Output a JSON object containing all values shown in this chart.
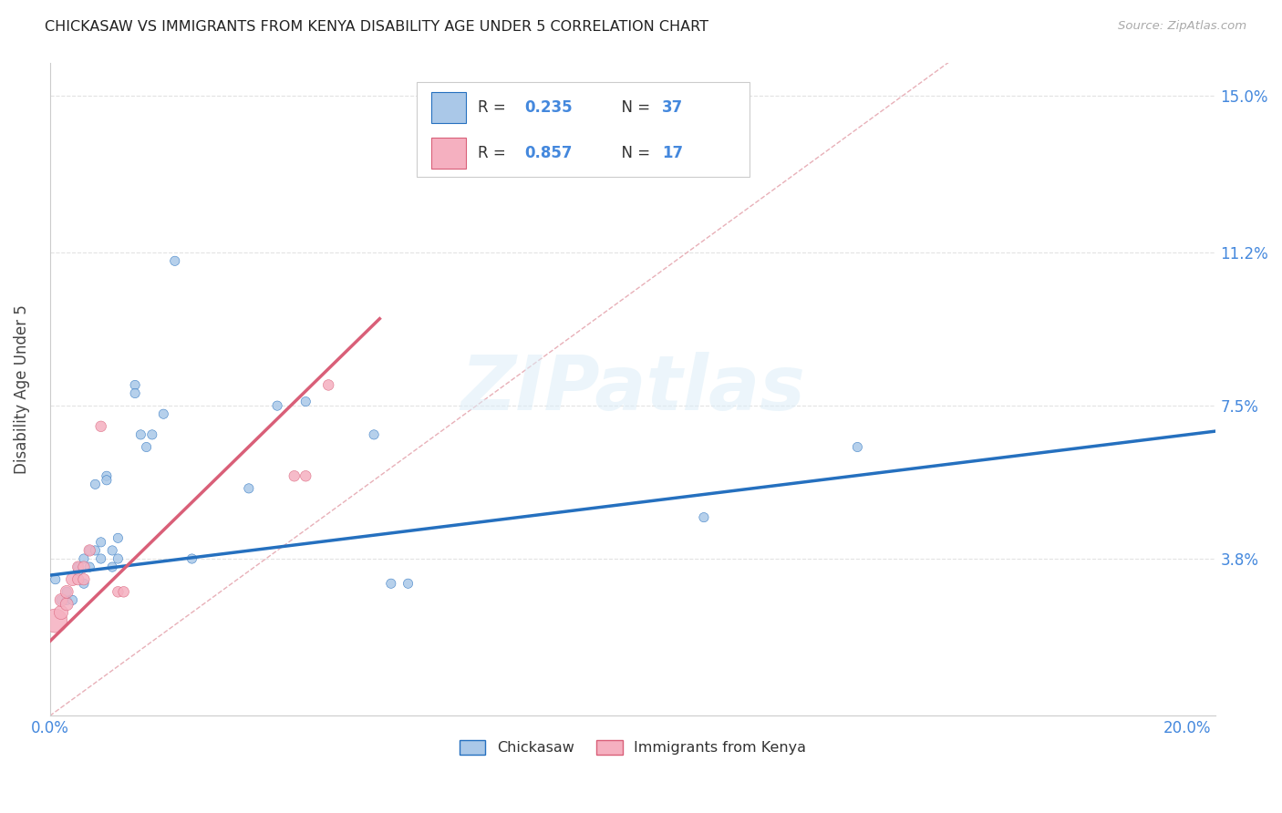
{
  "title": "CHICKASAW VS IMMIGRANTS FROM KENYA DISABILITY AGE UNDER 5 CORRELATION CHART",
  "source_text": "Source: ZipAtlas.com",
  "ylabel": "Disability Age Under 5",
  "xlim": [
    0.0,
    0.205
  ],
  "ylim": [
    0.0,
    0.158
  ],
  "xticks": [
    0.0,
    0.05,
    0.1,
    0.15,
    0.2
  ],
  "xtick_labels": [
    "0.0%",
    "",
    "",
    "",
    "20.0%"
  ],
  "ytick_positions": [
    0.038,
    0.075,
    0.112,
    0.15
  ],
  "ytick_labels": [
    "3.8%",
    "7.5%",
    "11.2%",
    "15.0%"
  ],
  "watermark": "ZIPatlas",
  "chickasaw_color": "#aac8e8",
  "kenya_color": "#f5b0c0",
  "line1_color": "#2570bf",
  "line2_color": "#d95f78",
  "diagonal_color": "#e8b0b8",
  "background_color": "#ffffff",
  "grid_color": "#e2e2e2",
  "title_color": "#222222",
  "axis_label_color": "#444444",
  "tick_color": "#4488dd",
  "r_value_color": "#4488dd",
  "n_value_color": "#4488dd",
  "legend_border_color": "#cccccc",
  "chickasaw_points": [
    [
      0.001,
      0.033
    ],
    [
      0.002,
      0.028
    ],
    [
      0.003,
      0.028
    ],
    [
      0.003,
      0.03
    ],
    [
      0.004,
      0.028
    ],
    [
      0.005,
      0.035
    ],
    [
      0.005,
      0.036
    ],
    [
      0.006,
      0.032
    ],
    [
      0.006,
      0.038
    ],
    [
      0.007,
      0.036
    ],
    [
      0.007,
      0.04
    ],
    [
      0.008,
      0.056
    ],
    [
      0.008,
      0.04
    ],
    [
      0.009,
      0.042
    ],
    [
      0.009,
      0.038
    ],
    [
      0.01,
      0.058
    ],
    [
      0.01,
      0.057
    ],
    [
      0.011,
      0.04
    ],
    [
      0.011,
      0.036
    ],
    [
      0.012,
      0.043
    ],
    [
      0.012,
      0.038
    ],
    [
      0.015,
      0.08
    ],
    [
      0.015,
      0.078
    ],
    [
      0.016,
      0.068
    ],
    [
      0.017,
      0.065
    ],
    [
      0.018,
      0.068
    ],
    [
      0.02,
      0.073
    ],
    [
      0.022,
      0.11
    ],
    [
      0.025,
      0.038
    ],
    [
      0.035,
      0.055
    ],
    [
      0.04,
      0.075
    ],
    [
      0.045,
      0.076
    ],
    [
      0.057,
      0.068
    ],
    [
      0.06,
      0.032
    ],
    [
      0.063,
      0.032
    ],
    [
      0.115,
      0.048
    ],
    [
      0.142,
      0.065
    ]
  ],
  "kenya_points": [
    [
      0.001,
      0.023
    ],
    [
      0.002,
      0.025
    ],
    [
      0.002,
      0.028
    ],
    [
      0.003,
      0.027
    ],
    [
      0.003,
      0.03
    ],
    [
      0.004,
      0.033
    ],
    [
      0.005,
      0.033
    ],
    [
      0.005,
      0.036
    ],
    [
      0.006,
      0.033
    ],
    [
      0.006,
      0.036
    ],
    [
      0.007,
      0.04
    ],
    [
      0.009,
      0.07
    ],
    [
      0.012,
      0.03
    ],
    [
      0.013,
      0.03
    ],
    [
      0.043,
      0.058
    ],
    [
      0.045,
      0.058
    ],
    [
      0.049,
      0.08
    ]
  ],
  "chickasaw_size": 55,
  "kenya_sizes": [
    350,
    120,
    100,
    100,
    100,
    100,
    80,
    80,
    80,
    80,
    80,
    70,
    70,
    70,
    70,
    70,
    70
  ],
  "legend_r1": "R = 0.235",
  "legend_n1": "N = 37",
  "legend_r2": "R = 0.857",
  "legend_n2": "N = 17",
  "legend_patch1_color": "#aac8e8",
  "legend_patch2_color": "#f5b0c0",
  "legend_patch1_edge": "#2570bf",
  "legend_patch2_edge": "#d95f78"
}
